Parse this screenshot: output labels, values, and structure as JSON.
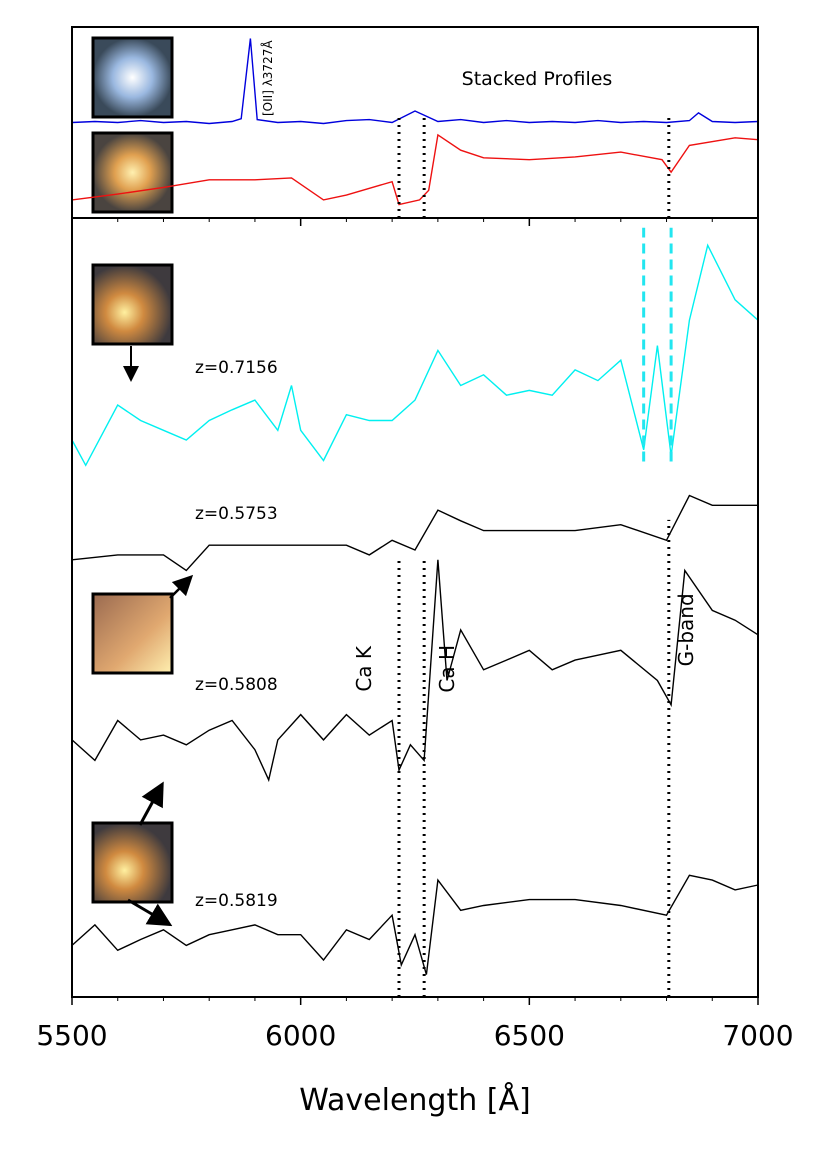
{
  "chart_data": [
    {
      "type": "line",
      "title": "Stacked Profiles",
      "annotation": "[OII] λ3727Å",
      "xlim": [
        5500,
        7000
      ],
      "ylim": [
        0,
        20
      ],
      "xticks": [
        5500,
        6000,
        6500,
        7000
      ],
      "xminor_ticks": [
        5600,
        5700,
        5800,
        5900,
        6100,
        6200,
        6300,
        6400,
        6600,
        6700,
        6800,
        6900
      ],
      "vlines": [
        {
          "x": 6215,
          "span": [
            0,
            11
          ],
          "color": "#000000",
          "style": "dotted"
        },
        {
          "x": 6270,
          "span": [
            0,
            11
          ],
          "color": "#000000",
          "style": "dotted"
        },
        {
          "x": 6805,
          "span": [
            0,
            11
          ],
          "color": "#000000",
          "style": "dotted"
        }
      ],
      "series": [
        {
          "color": "#0000dd",
          "x": [
            5500,
            5550,
            5600,
            5650,
            5700,
            5750,
            5800,
            5850,
            5870,
            5890,
            5905,
            5950,
            6000,
            6050,
            6100,
            6150,
            6200,
            6250,
            6300,
            6350,
            6400,
            6450,
            6500,
            6550,
            6600,
            6650,
            6700,
            6750,
            6800,
            6850,
            6870,
            6900,
            6950,
            7000
          ],
          "values": [
            10.0,
            10.1,
            10.0,
            10.2,
            10.0,
            10.1,
            9.9,
            10.1,
            10.4,
            18.8,
            10.3,
            10.0,
            10.1,
            9.9,
            10.2,
            10.3,
            10.0,
            11.2,
            10.1,
            10.3,
            10.0,
            10.2,
            10.0,
            10.1,
            10.0,
            10.2,
            10.0,
            10.1,
            10.0,
            10.2,
            11.0,
            10.1,
            10.0,
            10.1
          ]
        },
        {
          "color": "#ee1111",
          "x": [
            5500,
            5600,
            5700,
            5800,
            5900,
            5980,
            6050,
            6100,
            6200,
            6215,
            6260,
            6280,
            6300,
            6350,
            6400,
            6500,
            6600,
            6700,
            6790,
            6810,
            6850,
            6950,
            7000
          ],
          "values": [
            1.9,
            2.5,
            3.2,
            4.0,
            4.0,
            4.2,
            1.9,
            2.4,
            3.8,
            1.4,
            1.9,
            2.9,
            8.7,
            7.1,
            6.3,
            6.1,
            6.4,
            6.9,
            6.1,
            4.8,
            7.6,
            8.4,
            8.2
          ]
        }
      ]
    },
    {
      "type": "line",
      "xlabel": "Wavelength [Å]",
      "xlim": [
        5500,
        7000
      ],
      "ylim": [
        0,
        80
      ],
      "xticks": [
        5500,
        6000,
        6500,
        7000
      ],
      "xminor_ticks": [
        5600,
        5700,
        5800,
        5900,
        6100,
        6200,
        6300,
        6400,
        6600,
        6700,
        6800,
        6900
      ],
      "vlines": [
        {
          "x": 6215,
          "span": [
            0,
            45
          ],
          "color": "#000000",
          "style": "dotted",
          "label": "Ca K"
        },
        {
          "x": 6270,
          "span": [
            0,
            45
          ],
          "color": "#000000",
          "style": "dotted",
          "label": "Ca H"
        },
        {
          "x": 6805,
          "span": [
            0,
            49
          ],
          "color": "#000000",
          "style": "dotted",
          "label": "G-band"
        },
        {
          "x": 6750,
          "span": [
            55,
            79
          ],
          "color": "#22e6f0",
          "style": "dashed"
        },
        {
          "x": 6810,
          "span": [
            55,
            79
          ],
          "color": "#22e6f0",
          "style": "dashed"
        }
      ],
      "series": [
        {
          "name": "z=0.7156",
          "color": "#00f0f0",
          "x": [
            5500,
            5530,
            5600,
            5650,
            5700,
            5750,
            5800,
            5850,
            5900,
            5950,
            5980,
            6000,
            6050,
            6100,
            6150,
            6200,
            6250,
            6300,
            6350,
            6400,
            6450,
            6500,
            6550,
            6600,
            6650,
            6700,
            6750,
            6780,
            6810,
            6850,
            6890,
            6950,
            7000
          ],
          "values": [
            57.2,
            54.6,
            60.8,
            59.2,
            58.2,
            57.2,
            59.2,
            60.3,
            61.3,
            58.2,
            62.8,
            58.2,
            55.1,
            59.8,
            59.2,
            59.2,
            61.3,
            66.4,
            62.8,
            63.9,
            61.8,
            62.3,
            61.8,
            64.4,
            63.3,
            65.4,
            56.2,
            66.9,
            55.6,
            69.5,
            77.2,
            71.6,
            69.5
          ]
        },
        {
          "name": "z=0.5753",
          "color": "#000000",
          "x": [
            5500,
            5600,
            5700,
            5750,
            5800,
            5900,
            6000,
            6100,
            6150,
            6200,
            6250,
            6300,
            6350,
            6400,
            6500,
            6600,
            6700,
            6800,
            6850,
            6900,
            7000
          ],
          "values": [
            44.9,
            45.4,
            45.4,
            43.8,
            46.4,
            46.4,
            46.4,
            46.4,
            45.4,
            46.9,
            45.9,
            50.0,
            48.9,
            47.9,
            47.9,
            47.9,
            48.5,
            46.9,
            51.5,
            50.5,
            50.5
          ]
        },
        {
          "name": "z=0.5808",
          "color": "#000000",
          "x": [
            5500,
            5550,
            5600,
            5650,
            5700,
            5750,
            5800,
            5850,
            5900,
            5930,
            5950,
            6000,
            6050,
            6100,
            6150,
            6200,
            6215,
            6240,
            6270,
            6300,
            6320,
            6350,
            6400,
            6450,
            6500,
            6550,
            6600,
            6650,
            6700,
            6780,
            6810,
            6840,
            6900,
            6950,
            7000
          ],
          "values": [
            26.4,
            24.3,
            28.4,
            26.4,
            26.9,
            25.9,
            27.4,
            28.4,
            25.4,
            22.3,
            26.4,
            29.0,
            26.4,
            29.0,
            26.9,
            28.4,
            23.3,
            25.9,
            24.3,
            44.9,
            32.5,
            37.7,
            33.6,
            34.6,
            35.6,
            33.6,
            34.6,
            35.1,
            35.6,
            32.5,
            30.0,
            43.8,
            39.7,
            38.7,
            37.2
          ]
        },
        {
          "name": "z=0.5819",
          "color": "#000000",
          "x": [
            5500,
            5550,
            5600,
            5650,
            5700,
            5750,
            5800,
            5850,
            5900,
            5950,
            6000,
            6050,
            6100,
            6150,
            6200,
            6220,
            6250,
            6275,
            6300,
            6350,
            6400,
            6500,
            6600,
            6700,
            6800,
            6850,
            6900,
            6950,
            7000
          ],
          "values": [
            5.3,
            7.4,
            4.8,
            5.9,
            6.9,
            5.3,
            6.4,
            6.9,
            7.4,
            6.4,
            6.4,
            3.8,
            6.9,
            5.9,
            8.4,
            3.3,
            6.4,
            2.3,
            12.0,
            8.9,
            9.4,
            10.0,
            10.0,
            9.4,
            8.4,
            12.5,
            12.0,
            11.0,
            11.5
          ]
        }
      ]
    }
  ]
}
